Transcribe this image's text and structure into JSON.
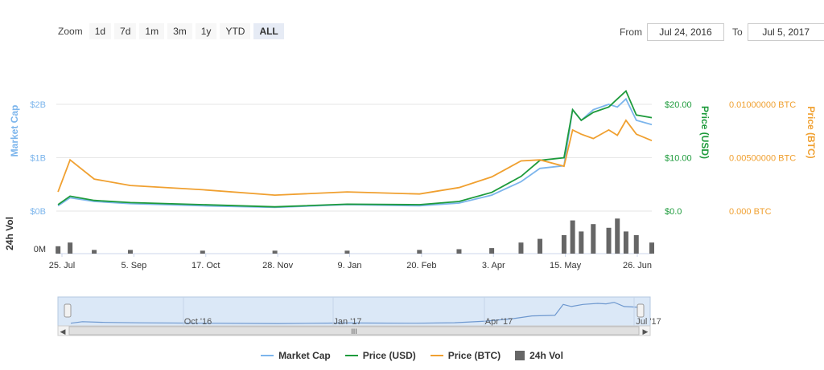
{
  "toolbar": {
    "zoom_label": "Zoom",
    "buttons": [
      "1d",
      "7d",
      "1m",
      "3m",
      "1y",
      "YTD",
      "ALL"
    ],
    "active": "ALL",
    "from_label": "From",
    "from_value": "Jul 24, 2016",
    "to_label": "To",
    "to_value": "Jul 5, 2017"
  },
  "navigator": {
    "labels": [
      "Oct '16",
      "Jan '17",
      "Apr '17",
      "Jul '17"
    ],
    "scroll_glyph": "III"
  },
  "colors": {
    "market_cap": "#7cb5ec",
    "price_usd": "#1e9b3c",
    "price_btc": "#f0a030",
    "volume": "#666666"
  },
  "chart_data": {
    "type": "line",
    "x_tick_labels": [
      "25. Jul",
      "5. Sep",
      "17. Oct",
      "28. Nov",
      "9. Jan",
      "20. Feb",
      "3. Apr",
      "15. May",
      "26. Jun"
    ],
    "x": [
      "2016-07-25",
      "2016-08-01",
      "2016-08-15",
      "2016-09-05",
      "2016-10-17",
      "2016-11-28",
      "2017-01-09",
      "2017-02-20",
      "2017-03-15",
      "2017-04-03",
      "2017-04-20",
      "2017-05-01",
      "2017-05-15",
      "2017-05-20",
      "2017-05-25",
      "2017-06-01",
      "2017-06-10",
      "2017-06-15",
      "2017-06-20",
      "2017-06-26",
      "2017-07-05"
    ],
    "series": [
      {
        "name": "Market Cap",
        "axis": "Market Cap",
        "values": [
          0.1,
          0.25,
          0.18,
          0.14,
          0.1,
          0.07,
          0.12,
          0.1,
          0.15,
          0.3,
          0.55,
          0.8,
          0.85,
          1.9,
          1.7,
          1.9,
          2.0,
          1.95,
          2.1,
          1.7,
          1.62
        ]
      },
      {
        "name": "Price (USD)",
        "axis": "Price (USD)",
        "values": [
          1.2,
          2.8,
          2.0,
          1.6,
          1.2,
          0.8,
          1.3,
          1.2,
          1.8,
          3.5,
          6.5,
          9.5,
          10.0,
          19.0,
          17.0,
          18.5,
          19.5,
          21.0,
          22.5,
          18.0,
          17.5
        ]
      },
      {
        "name": "Price (BTC)",
        "axis": "Price (BTC)",
        "values": [
          0.0018,
          0.0048,
          0.003,
          0.0024,
          0.002,
          0.0015,
          0.0018,
          0.0016,
          0.0022,
          0.0032,
          0.0047,
          0.0048,
          0.0042,
          0.0076,
          0.0072,
          0.0068,
          0.0076,
          0.0071,
          0.0085,
          0.0072,
          0.0066
        ]
      },
      {
        "name": "24h Vol",
        "axis": "24h Vol",
        "values": [
          0.2,
          0.3,
          0.1,
          0.1,
          0.08,
          0.08,
          0.08,
          0.1,
          0.12,
          0.15,
          0.3,
          0.4,
          0.5,
          0.9,
          0.6,
          0.8,
          0.7,
          0.95,
          0.6,
          0.5,
          0.3
        ]
      }
    ],
    "axes": {
      "market_cap": {
        "label": "Market Cap",
        "ticks": [
          "$0B",
          "$1B",
          "$2B"
        ],
        "range": [
          0,
          2
        ]
      },
      "price_usd": {
        "label": "Price (USD)",
        "ticks": [
          "$0.0",
          "$10.00",
          "$20.00"
        ],
        "range": [
          0,
          20
        ]
      },
      "price_btc": {
        "label": "Price (BTC)",
        "ticks": [
          "0.000 BTC",
          "0.00500000 BTC",
          "0.01000000 BTC"
        ],
        "range": [
          0,
          0.01
        ]
      },
      "volume": {
        "label": "24h Vol",
        "ticks": [
          "0M"
        ]
      }
    },
    "legend": [
      "Market Cap",
      "Price (USD)",
      "Price (BTC)",
      "24h Vol"
    ],
    "legend_position": "bottom",
    "grid": true
  }
}
